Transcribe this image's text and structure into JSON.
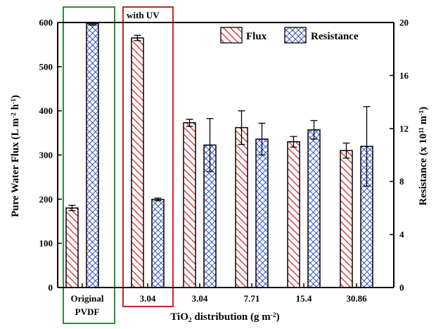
{
  "chart_data": {
    "type": "bar",
    "categories": [
      "Original PVDF",
      "3.04",
      "3.04",
      "7.71",
      "15.4",
      "30.86"
    ],
    "category_labels": [
      [
        "Original",
        "PVDF"
      ],
      [
        "3.04"
      ],
      [
        "3.04"
      ],
      [
        "7.71"
      ],
      [
        "15.4"
      ],
      [
        "30.86"
      ]
    ],
    "xlabel_parts": [
      "TiO",
      "2",
      " distribution (g m",
      "-2",
      ")"
    ],
    "ylabel_left_parts": [
      "Pure Water Flux (L m",
      "-2",
      " h",
      "-1",
      ")"
    ],
    "ylabel_right_parts": [
      "Resistance (x 10",
      "11",
      " m",
      "-1",
      ")"
    ],
    "ylim_left": [
      0,
      600
    ],
    "yticks_left": [
      0,
      100,
      200,
      300,
      400,
      500,
      600
    ],
    "ylim_right": [
      0,
      20
    ],
    "yticks_right": [
      0,
      4,
      8,
      12,
      16,
      20
    ],
    "series": [
      {
        "name": "Flux",
        "axis": "left",
        "color": "#d62728",
        "pattern": "diagonal-hatch",
        "values": [
          180,
          565,
          373,
          362,
          330,
          310
        ],
        "errors": [
          6,
          6,
          8,
          38,
          12,
          17
        ]
      },
      {
        "name": "Resistance",
        "axis": "right",
        "color": "#1f3fbf",
        "pattern": "crosshatch",
        "values": [
          19.9,
          6.65,
          10.75,
          11.2,
          11.9,
          10.65
        ],
        "errors": [
          0.1,
          0.1,
          2.0,
          1.2,
          0.7,
          3.0
        ]
      }
    ],
    "annotations": [
      {
        "text": "with UV",
        "box_color": "#c62828",
        "spans_category": 1
      },
      {
        "text": "",
        "box_color": "#2e8b3a",
        "spans_category": 0
      }
    ],
    "legend_position": "top-right",
    "grid": false
  }
}
